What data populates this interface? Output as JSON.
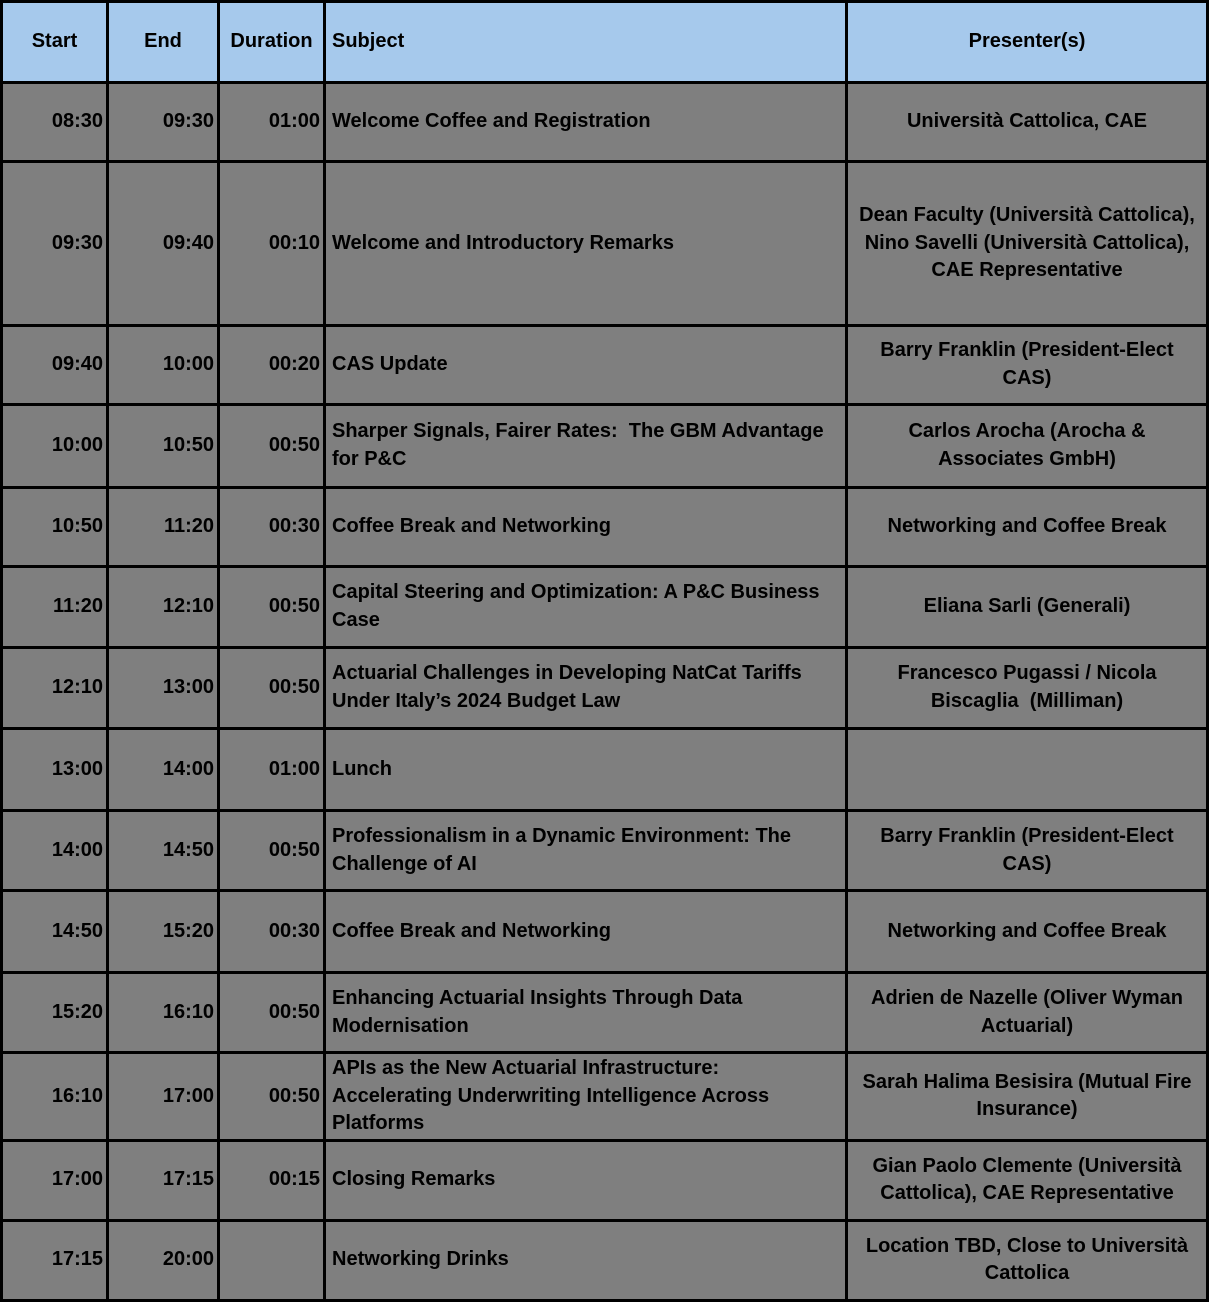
{
  "table": {
    "headers": {
      "start": "Start",
      "end": "End",
      "duration": "Duration",
      "subject": "Subject",
      "presenters": "Presenter(s)"
    },
    "rows": [
      {
        "start": "08:30",
        "end": "09:30",
        "duration": "01:00",
        "subject": "Welcome Coffee and Registration",
        "presenters": "Università Cattolica, CAE"
      },
      {
        "start": "09:30",
        "end": "09:40",
        "duration": "00:10",
        "subject": "Welcome and Introductory Remarks",
        "presenters": "Dean Faculty (Università Cattolica), Nino Savelli (Università Cattolica), CAE Representative"
      },
      {
        "start": "09:40",
        "end": "10:00",
        "duration": "00:20",
        "subject": "CAS Update",
        "presenters": "Barry Franklin (President-Elect CAS)"
      },
      {
        "start": "10:00",
        "end": "10:50",
        "duration": "00:50",
        "subject": "Sharper Signals, Fairer Rates:  The GBM Advantage for P&C",
        "presenters": "Carlos Arocha (Arocha & Associates GmbH)"
      },
      {
        "start": "10:50",
        "end": "11:20",
        "duration": "00:30",
        "subject": "Coffee Break and Networking",
        "presenters": "Networking and Coffee Break"
      },
      {
        "start": "11:20",
        "end": "12:10",
        "duration": "00:50",
        "subject": "Capital Steering and Optimization: A P&C Business Case",
        "presenters": "Eliana Sarli (Generali)"
      },
      {
        "start": "12:10",
        "end": "13:00",
        "duration": "00:50",
        "subject": "Actuarial Challenges in Developing NatCat Tariffs Under Italy’s 2024 Budget Law",
        "presenters": "Francesco Pugassi / Nicola Biscaglia  (Milliman)"
      },
      {
        "start": "13:00",
        "end": "14:00",
        "duration": "01:00",
        "subject": "Lunch",
        "presenters": ""
      },
      {
        "start": "14:00",
        "end": "14:50",
        "duration": "00:50",
        "subject": "Professionalism in a Dynamic Environment: The Challenge of AI",
        "presenters": "Barry Franklin (President-Elect CAS)"
      },
      {
        "start": "14:50",
        "end": "15:20",
        "duration": "00:30",
        "subject": "Coffee Break and Networking",
        "presenters": "Networking and Coffee Break"
      },
      {
        "start": "15:20",
        "end": "16:10",
        "duration": "00:50",
        "subject": "Enhancing Actuarial Insights Through Data Modernisation",
        "presenters": "Adrien de Nazelle (Oliver Wyman Actuarial)"
      },
      {
        "start": "16:10",
        "end": "17:00",
        "duration": "00:50",
        "subject": "APIs as the New Actuarial Infrastructure: Accelerating Underwriting Intelligence Across Platforms",
        "presenters": "Sarah Halima Besisira (Mutual Fire Insurance)"
      },
      {
        "start": "17:00",
        "end": "17:15",
        "duration": "00:15",
        "subject": "Closing Remarks",
        "presenters": "Gian Paolo Clemente (Università Cattolica), CAE Representative"
      },
      {
        "start": "17:15",
        "end": "20:00",
        "duration": "",
        "subject": "Networking Drinks",
        "presenters": "Location TBD, Close to Università Cattolica"
      }
    ]
  },
  "colors": {
    "header_bg": "#a6c9ec",
    "row_bg": "#7f7f7f",
    "grid": "#000000",
    "text": "#000000"
  }
}
